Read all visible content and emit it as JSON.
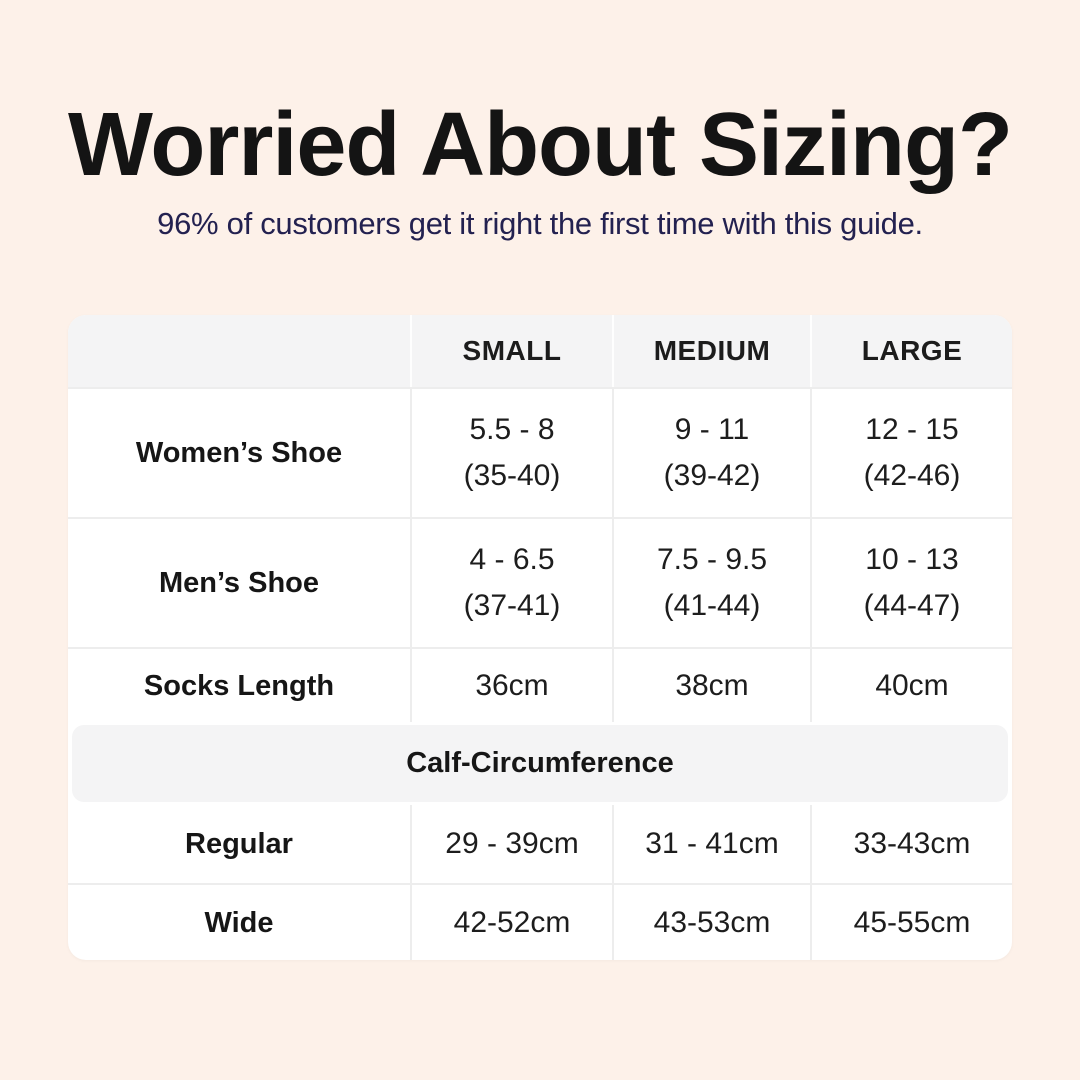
{
  "page": {
    "background_color": "#fdf1e9",
    "table_background_color": "#ffffff",
    "band_color": "#f4f4f5",
    "title_color": "#141414",
    "subtitle_color": "#232150"
  },
  "header": {
    "title": "Worried About Sizing?",
    "subtitle": "96% of customers get it right the first time with this guide."
  },
  "table": {
    "column_headers": {
      "small": "SMALL",
      "medium": "MEDIUM",
      "large": "LARGE"
    },
    "rows": [
      {
        "label": "Women’s Shoe",
        "cells": [
          {
            "line1": "5.5 - 8",
            "line2": "(35-40)"
          },
          {
            "line1": "9 - 11",
            "line2": "(39-42)"
          },
          {
            "line1": "12 - 15",
            "line2": "(42-46)"
          }
        ]
      },
      {
        "label": "Men’s Shoe",
        "cells": [
          {
            "line1": "4 - 6.5",
            "line2": "(37-41)"
          },
          {
            "line1": "7.5 - 9.5",
            "line2": "(41-44)"
          },
          {
            "line1": "10 - 13",
            "line2": "(44-47)"
          }
        ]
      },
      {
        "label": "Socks Length",
        "cells": [
          {
            "line1": "36cm"
          },
          {
            "line1": "38cm"
          },
          {
            "line1": "40cm"
          }
        ]
      }
    ],
    "section_header": "Calf-Circumference",
    "calf_rows": [
      {
        "label": "Regular",
        "cells": [
          {
            "line1": "29 - 39cm"
          },
          {
            "line1": "31 - 41cm"
          },
          {
            "line1": "33-43cm"
          }
        ]
      },
      {
        "label": "Wide",
        "cells": [
          {
            "line1": "42-52cm"
          },
          {
            "line1": "43-53cm"
          },
          {
            "line1": "45-55cm"
          }
        ]
      }
    ]
  },
  "chart_data": {
    "type": "table",
    "title": "Worried About Sizing?",
    "subtitle": "96% of customers get it right the first time with this guide.",
    "columns": [
      "",
      "SMALL",
      "MEDIUM",
      "LARGE"
    ],
    "rows": [
      [
        "Women’s Shoe",
        "5.5 - 8 (35-40)",
        "9 - 11 (39-42)",
        "12 - 15 (42-46)"
      ],
      [
        "Men’s Shoe",
        "4 - 6.5 (37-41)",
        "7.5 - 9.5 (41-44)",
        "10 - 13 (44-47)"
      ],
      [
        "Socks Length",
        "36cm",
        "38cm",
        "40cm"
      ],
      [
        "Calf-Circumference",
        "",
        "",
        ""
      ],
      [
        "Regular",
        "29 - 39cm",
        "31 - 41cm",
        "33-43cm"
      ],
      [
        "Wide",
        "42-52cm",
        "43-53cm",
        "45-55cm"
      ]
    ]
  }
}
